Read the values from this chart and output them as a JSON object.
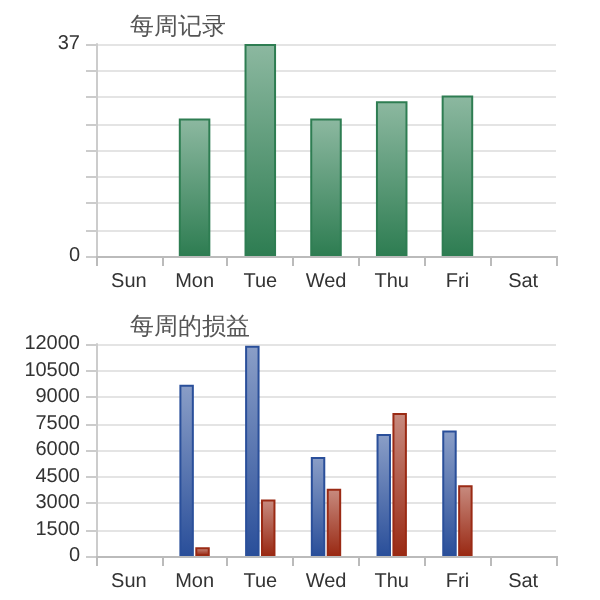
{
  "chart_data": [
    {
      "type": "bar",
      "title": "每周记录",
      "categories": [
        "Sun",
        "Mon",
        "Tue",
        "Wed",
        "Thu",
        "Fri",
        "Sat"
      ],
      "values": [
        null,
        24,
        37,
        24,
        27,
        28,
        null
      ],
      "color": "#2e7d52",
      "ylim": [
        0,
        37
      ],
      "yticks": [
        0,
        {
          "value": 4.625,
          "label": null
        },
        {
          "value": 9.25,
          "label": null
        },
        {
          "value": 13.875,
          "label": null
        },
        {
          "value": 18.5,
          "label": null
        },
        {
          "value": 23.125,
          "label": null
        },
        {
          "value": 27.75,
          "label": null
        },
        {
          "value": 32.375,
          "label": null
        },
        37
      ],
      "grid": "y"
    },
    {
      "type": "bar",
      "title": "每周的损益",
      "categories": [
        "Sun",
        "Mon",
        "Tue",
        "Wed",
        "Thu",
        "Fri",
        "Sat"
      ],
      "series": [
        {
          "color": "#2a4f9a",
          "values": [
            null,
            9700,
            11900,
            5600,
            6900,
            7100,
            null
          ]
        },
        {
          "color": "#9a2a14",
          "values": [
            null,
            500,
            3200,
            3800,
            8100,
            4000,
            null
          ]
        }
      ],
      "ylim": [
        0,
        12000
      ],
      "yticks": [
        0,
        1500,
        3000,
        4500,
        6000,
        7500,
        9000,
        10500,
        12000
      ],
      "grid": "y"
    }
  ]
}
